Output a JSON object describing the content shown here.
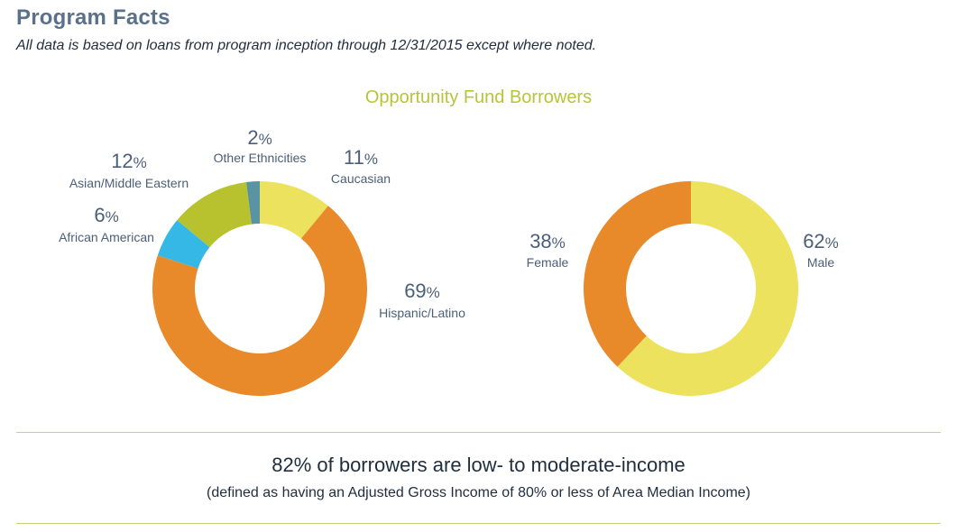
{
  "header": {
    "title": "Program Facts",
    "subtitle": "All data is based on loans from program inception through 12/31/2015 except where noted."
  },
  "section_title": "Opportunity Fund Borrowers",
  "chart_data": [
    {
      "type": "pie",
      "variant": "donut",
      "title": "",
      "slices": [
        {
          "label": "Caucasian",
          "value": 11,
          "display": "11",
          "color": "#ece25e"
        },
        {
          "label": "Hispanic/Latino",
          "value": 69,
          "display": "69",
          "color": "#e8892a"
        },
        {
          "label": "African American",
          "value": 6,
          "display": "6",
          "color": "#36b8e6"
        },
        {
          "label": "Asian/Middle Eastern",
          "value": 12,
          "display": "12",
          "color": "#b8c22f"
        },
        {
          "label": "Other Ethnicities",
          "value": 2,
          "display": "2",
          "color": "#5a93a1"
        }
      ]
    },
    {
      "type": "pie",
      "variant": "donut",
      "title": "",
      "slices": [
        {
          "label": "Male",
          "value": 62,
          "display": "62",
          "color": "#ece25e"
        },
        {
          "label": "Female",
          "value": 38,
          "display": "38",
          "color": "#e8892a"
        }
      ]
    }
  ],
  "percent_sign": "%",
  "footer_note": {
    "main": "82% of borrowers are low- to moderate-income",
    "sub": "(defined as having an Adjusted Gross Income of 80% or less of Area Median Income)"
  }
}
